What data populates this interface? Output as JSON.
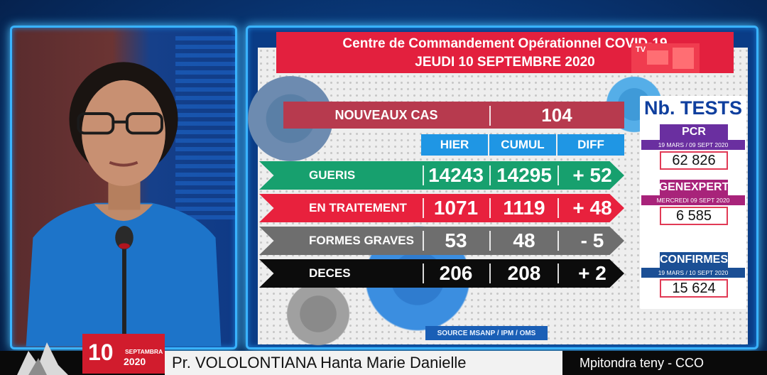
{
  "board": {
    "title_line1": "Centre de Commandement Opérationnel COVID-19",
    "title_line2": "JEUDI 10 SEPTEMBRE 2020",
    "tv_logo": "TV",
    "new_cases_label": "NOUVEAUX CAS",
    "new_cases_value": "104",
    "columns": [
      "HIER",
      "CUMUL",
      "DIFF"
    ],
    "rows": [
      {
        "label": "GUERIS",
        "hier": "14243",
        "cumul": "14295",
        "diff": "+ 52"
      },
      {
        "label": "EN TRAITEMENT",
        "hier": "1071",
        "cumul": "1119",
        "diff": "+ 48"
      },
      {
        "label": "FORMES GRAVES",
        "hier": "53",
        "cumul": "48",
        "diff": "- 5"
      },
      {
        "label": "DECES",
        "hier": "206",
        "cumul": "208",
        "diff": "+ 2"
      }
    ],
    "source": "SOURCE MSANP / IPM / OMS"
  },
  "tests": {
    "title": "Nb. TESTS",
    "pcr": {
      "label": "PCR",
      "period": "19 MARS  /  09 SEPT 2020",
      "value": "62 826"
    },
    "genexpert": {
      "label": "GENEXPERT",
      "period": "MERCREDI 09 SEPT 2020",
      "value": "6 585"
    },
    "confirmes": {
      "label": "CONFIRMES",
      "period": "19 MARS  /  10 SEPT 2020",
      "value": "15 624"
    }
  },
  "lower_third": {
    "day": "10",
    "month": "SEPTAMBRA",
    "year": "2020",
    "name": "Pr. VOLOLONTIANA Hanta Marie Danielle",
    "role": "Mpitondra teny - CCO"
  },
  "colors": {
    "frame_glow": "#39b3ff",
    "title_red": "#e3203e",
    "gueris_green": "#17a06e",
    "traitement_red": "#e8213d",
    "graves_grey": "#6e6e6e",
    "deces_black": "#0c0c0c",
    "header_blue": "#1f96e4",
    "tests_navy": "#0f3f9e",
    "pcr_purple": "#6a2fa0",
    "genexpert_magenta": "#a8237a",
    "confirmes_blue": "#1b4f95"
  }
}
